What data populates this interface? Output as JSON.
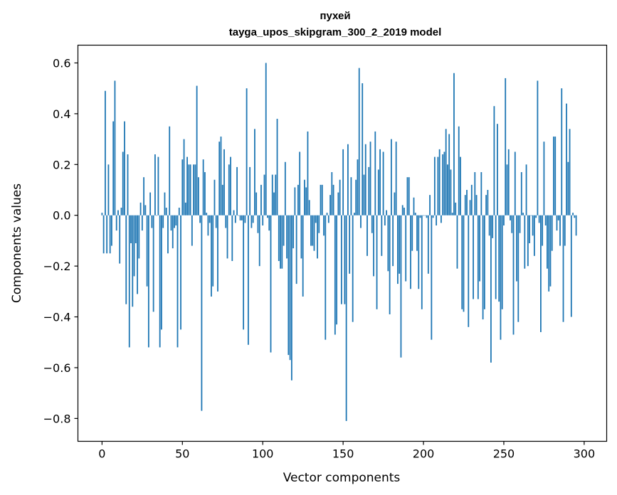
{
  "chart_data": {
    "type": "bar",
    "title_line1": "пухей",
    "title_line2": "tayga_upos_skipgram_300_2_2019 model",
    "xlabel": "Vector components",
    "ylabel": "Components values",
    "xlim": [
      -15,
      314
    ],
    "ylim": [
      -0.89,
      0.67
    ],
    "xticks": [
      0,
      50,
      100,
      150,
      200,
      250,
      300
    ],
    "yticks": [
      -0.8,
      -0.6,
      -0.4,
      -0.2,
      0.0,
      0.2,
      0.4,
      0.6
    ],
    "xtick_labels": [
      "0",
      "50",
      "100",
      "150",
      "200",
      "250",
      "300"
    ],
    "ytick_labels": [
      "−0.8",
      "−0.6",
      "−0.4",
      "−0.2",
      "0.0",
      "0.2",
      "0.4",
      "0.6"
    ],
    "bar_color": "#1f77b4",
    "values": [
      0.01,
      -0.15,
      0.49,
      -0.15,
      0.2,
      -0.15,
      -0.12,
      0.37,
      0.53,
      -0.06,
      0.02,
      -0.19,
      0.03,
      0.25,
      0.37,
      -0.35,
      0.24,
      -0.52,
      -0.11,
      -0.36,
      -0.24,
      -0.11,
      -0.31,
      -0.17,
      0.05,
      -0.06,
      0.15,
      0.04,
      -0.28,
      -0.52,
      0.09,
      -0.05,
      -0.38,
      0.24,
      0.0,
      0.23,
      -0.52,
      -0.45,
      -0.05,
      0.09,
      0.03,
      -0.15,
      0.35,
      -0.06,
      -0.13,
      -0.05,
      -0.04,
      -0.52,
      0.03,
      -0.45,
      0.22,
      0.3,
      0.05,
      0.23,
      0.2,
      0.2,
      -0.12,
      0.2,
      0.2,
      0.51,
      0.15,
      -0.03,
      -0.77,
      0.22,
      0.17,
      0.01,
      -0.08,
      -0.03,
      -0.32,
      -0.28,
      0.14,
      -0.05,
      -0.3,
      0.29,
      0.31,
      0.12,
      0.26,
      -0.05,
      -0.17,
      0.2,
      0.23,
      -0.18,
      0.02,
      -0.03,
      0.19,
      0.0,
      -0.02,
      -0.02,
      -0.45,
      -0.03,
      0.5,
      -0.51,
      0.19,
      -0.05,
      -0.03,
      0.34,
      0.09,
      -0.07,
      -0.2,
      0.12,
      -0.04,
      0.16,
      0.6,
      -0.01,
      -0.06,
      -0.54,
      0.16,
      0.09,
      0.16,
      0.38,
      -0.18,
      -0.21,
      -0.21,
      -0.12,
      0.21,
      -0.17,
      -0.55,
      -0.57,
      -0.65,
      -0.13,
      0.11,
      -0.27,
      0.12,
      0.25,
      -0.17,
      -0.32,
      0.14,
      0.11,
      0.33,
      0.06,
      -0.12,
      -0.12,
      -0.14,
      -0.03,
      -0.17,
      -0.07,
      0.12,
      0.12,
      -0.08,
      -0.49,
      0.01,
      -0.03,
      0.08,
      0.17,
      0.12,
      -0.47,
      -0.43,
      0.09,
      0.14,
      -0.35,
      0.26,
      -0.35,
      -0.81,
      0.28,
      -0.23,
      0.15,
      -0.42,
      0.01,
      0.14,
      0.22,
      0.58,
      -0.05,
      0.52,
      0.16,
      0.28,
      -0.16,
      0.19,
      0.29,
      -0.07,
      -0.24,
      0.33,
      -0.37,
      0.18,
      0.26,
      -0.16,
      0.25,
      -0.04,
      0.02,
      -0.22,
      -0.39,
      0.3,
      -0.2,
      0.09,
      0.29,
      -0.27,
      -0.23,
      -0.56,
      0.04,
      0.03,
      -0.26,
      0.15,
      0.15,
      -0.29,
      -0.14,
      0.07,
      0.01,
      -0.14,
      -0.29,
      -0.01,
      -0.37,
      0.0,
      0.0,
      -0.01,
      -0.23,
      0.08,
      -0.49,
      -0.01,
      0.23,
      -0.04,
      0.23,
      0.26,
      -0.03,
      0.24,
      0.25,
      0.34,
      0.2,
      0.32,
      0.18,
      0.01,
      0.56,
      0.05,
      -0.21,
      0.35,
      0.23,
      -0.37,
      -0.38,
      0.08,
      0.1,
      -0.44,
      0.06,
      0.12,
      -0.33,
      0.17,
      0.08,
      -0.33,
      -0.26,
      0.17,
      -0.41,
      -0.37,
      0.08,
      0.1,
      -0.08,
      -0.58,
      -0.09,
      0.43,
      -0.33,
      0.36,
      -0.34,
      -0.49,
      -0.37,
      -0.04,
      0.54,
      0.2,
      0.26,
      -0.02,
      -0.07,
      -0.47,
      0.25,
      -0.26,
      -0.42,
      -0.07,
      0.17,
      0.01,
      -0.21,
      0.2,
      -0.2,
      -0.11,
      0.0,
      -0.08,
      -0.16,
      -0.01,
      0.53,
      -0.03,
      -0.46,
      -0.12,
      0.29,
      -0.04,
      -0.21,
      -0.3,
      -0.28,
      -0.14,
      0.31,
      0.31,
      -0.06,
      -0.02,
      -0.12,
      0.5,
      -0.42,
      -0.12,
      0.44,
      0.21,
      0.34,
      -0.4,
      0.01,
      -0.01,
      -0.08
    ]
  }
}
